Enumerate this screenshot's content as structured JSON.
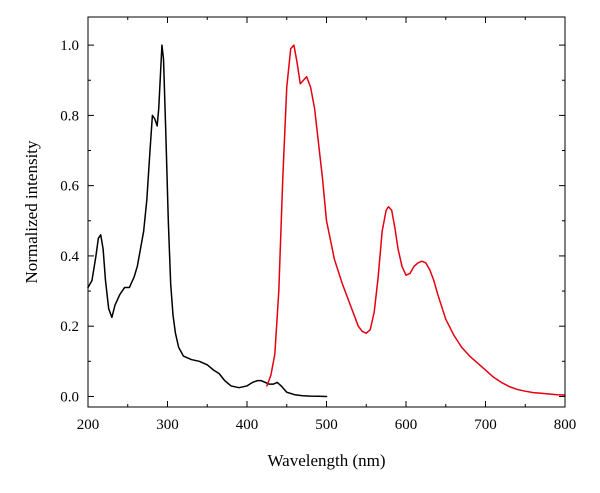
{
  "chart_data": {
    "type": "line",
    "title": "",
    "xlabel": "Wavelength (nm)",
    "ylabel": "Normalized intensity",
    "xlim": [
      200,
      800
    ],
    "ylim": [
      -0.03,
      1.08
    ],
    "xticks": [
      200,
      300,
      400,
      500,
      600,
      700,
      800
    ],
    "xtick_labels": [
      "200",
      "300",
      "400",
      "500",
      "600",
      "700",
      "800"
    ],
    "yticks": [
      0.0,
      0.2,
      0.4,
      0.6,
      0.8,
      1.0
    ],
    "ytick_labels": [
      "0.0",
      "0.2",
      "0.4",
      "0.6",
      "0.8",
      "1.0"
    ],
    "grid": false,
    "legend": "none",
    "series": [
      {
        "color": "#000000",
        "x": [
          200,
          205,
          210,
          213,
          216,
          219,
          222,
          226,
          230,
          234,
          240,
          246,
          252,
          258,
          262,
          266,
          270,
          274,
          278,
          281,
          284,
          287,
          289,
          291,
          293,
          295,
          298,
          301,
          304,
          307,
          310,
          314,
          320,
          330,
          340,
          350,
          358,
          365,
          372,
          380,
          390,
          400,
          407,
          413,
          418,
          423,
          428,
          433,
          438,
          443,
          450,
          460,
          470,
          480,
          490,
          500
        ],
        "y": [
          0.31,
          0.33,
          0.4,
          0.45,
          0.46,
          0.42,
          0.33,
          0.25,
          0.225,
          0.26,
          0.29,
          0.31,
          0.31,
          0.34,
          0.37,
          0.42,
          0.47,
          0.56,
          0.7,
          0.8,
          0.79,
          0.77,
          0.82,
          0.91,
          1.0,
          0.96,
          0.74,
          0.5,
          0.32,
          0.23,
          0.18,
          0.14,
          0.115,
          0.105,
          0.1,
          0.09,
          0.075,
          0.065,
          0.045,
          0.03,
          0.025,
          0.03,
          0.04,
          0.045,
          0.045,
          0.04,
          0.035,
          0.035,
          0.04,
          0.03,
          0.012,
          0.005,
          0.002,
          0.001,
          0.0005,
          0.0
        ]
      },
      {
        "color": "#e3000f",
        "x": [
          425,
          430,
          435,
          440,
          445,
          450,
          455,
          459,
          463,
          467,
          471,
          475,
          480,
          485,
          490,
          495,
          500,
          510,
          520,
          530,
          540,
          545,
          550,
          555,
          560,
          565,
          570,
          575,
          578,
          582,
          586,
          590,
          595,
          600,
          605,
          610,
          615,
          620,
          625,
          630,
          635,
          640,
          650,
          660,
          670,
          680,
          690,
          700,
          710,
          720,
          730,
          740,
          750,
          760,
          770,
          780,
          790,
          800
        ],
        "y": [
          0.03,
          0.06,
          0.12,
          0.3,
          0.62,
          0.88,
          0.99,
          1.0,
          0.95,
          0.89,
          0.9,
          0.91,
          0.88,
          0.82,
          0.72,
          0.62,
          0.5,
          0.39,
          0.32,
          0.26,
          0.2,
          0.185,
          0.18,
          0.19,
          0.24,
          0.34,
          0.47,
          0.53,
          0.54,
          0.53,
          0.48,
          0.42,
          0.37,
          0.345,
          0.35,
          0.37,
          0.38,
          0.385,
          0.38,
          0.36,
          0.33,
          0.29,
          0.22,
          0.175,
          0.14,
          0.115,
          0.095,
          0.075,
          0.055,
          0.04,
          0.028,
          0.02,
          0.015,
          0.011,
          0.009,
          0.007,
          0.005,
          0.004
        ]
      }
    ]
  }
}
